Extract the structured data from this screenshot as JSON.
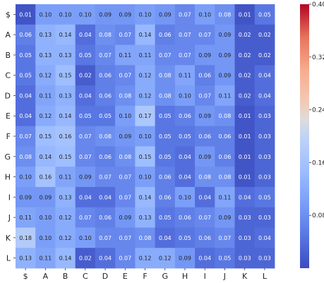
{
  "chart_data": {
    "type": "heatmap",
    "rows": [
      "$",
      "A",
      "B",
      "C",
      "D",
      "E",
      "F",
      "G",
      "H",
      "I",
      "J",
      "K",
      "L"
    ],
    "cols": [
      "$",
      "A",
      "B",
      "C",
      "D",
      "E",
      "F",
      "G",
      "H",
      "I",
      "J",
      "K",
      "L"
    ],
    "values": [
      [
        0.01,
        0.1,
        0.1,
        0.1,
        0.09,
        0.09,
        0.1,
        0.09,
        0.07,
        0.1,
        0.08,
        0.01,
        0.05
      ],
      [
        0.06,
        0.13,
        0.14,
        0.04,
        0.08,
        0.07,
        0.14,
        0.06,
        0.07,
        0.07,
        0.09,
        0.02,
        0.02
      ],
      [
        0.05,
        0.13,
        0.13,
        0.05,
        0.07,
        0.11,
        0.11,
        0.07,
        0.07,
        0.09,
        0.09,
        0.02,
        0.02
      ],
      [
        0.05,
        0.12,
        0.15,
        0.02,
        0.06,
        0.07,
        0.12,
        0.08,
        0.11,
        0.06,
        0.09,
        0.02,
        0.04
      ],
      [
        0.04,
        0.11,
        0.13,
        0.04,
        0.06,
        0.08,
        0.12,
        0.08,
        0.1,
        0.07,
        0.11,
        0.02,
        0.04
      ],
      [
        0.04,
        0.12,
        0.14,
        0.05,
        0.05,
        0.1,
        0.17,
        0.05,
        0.06,
        0.09,
        0.08,
        0.01,
        0.03
      ],
      [
        0.07,
        0.15,
        0.16,
        0.07,
        0.08,
        0.09,
        0.1,
        0.05,
        0.05,
        0.06,
        0.06,
        0.01,
        0.03
      ],
      [
        0.08,
        0.14,
        0.15,
        0.07,
        0.06,
        0.08,
        0.15,
        0.05,
        0.04,
        0.09,
        0.06,
        0.01,
        0.03
      ],
      [
        0.1,
        0.16,
        0.11,
        0.09,
        0.07,
        0.07,
        0.1,
        0.06,
        0.04,
        0.08,
        0.08,
        0.01,
        0.03
      ],
      [
        0.09,
        0.09,
        0.13,
        0.04,
        0.04,
        0.07,
        0.14,
        0.06,
        0.1,
        0.04,
        0.11,
        0.04,
        0.05
      ],
      [
        0.11,
        0.1,
        0.12,
        0.07,
        0.06,
        0.09,
        0.13,
        0.05,
        0.06,
        0.07,
        0.09,
        0.03,
        0.03
      ],
      [
        0.18,
        0.1,
        0.12,
        0.1,
        0.07,
        0.07,
        0.08,
        0.04,
        0.05,
        0.06,
        0.07,
        0.03,
        0.04
      ],
      [
        0.13,
        0.11,
        0.14,
        0.02,
        0.04,
        0.07,
        0.12,
        0.12,
        0.09,
        0.04,
        0.05,
        0.03,
        0.03
      ]
    ],
    "colormap": "coolwarm",
    "vmin": 0.0,
    "vmax": 0.4,
    "colorbar_ticks": [
      "0.08",
      "0.16",
      "0.24",
      "0.32",
      "0.40"
    ],
    "title": "",
    "xlabel": "",
    "ylabel": ""
  }
}
